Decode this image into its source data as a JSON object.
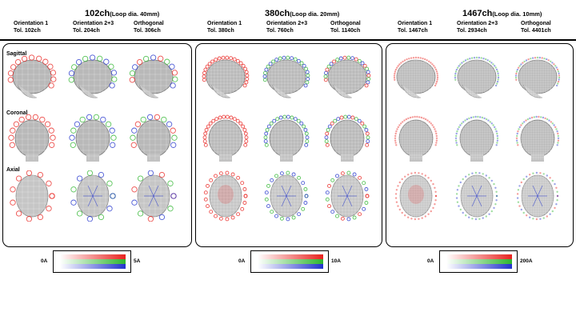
{
  "groups": [
    {
      "title": "102ch",
      "subtitle": "(Loop dia. 40mm)",
      "columns": [
        {
          "name": "Orientation 1",
          "tol": "Tol. 102ch"
        },
        {
          "name": "Orientation 2+3",
          "tol": "Tol.  204ch"
        },
        {
          "name": "Orthogonal",
          "tol": "Tol. 306ch"
        }
      ],
      "legend": {
        "min": "0A",
        "max": "5A"
      }
    },
    {
      "title": "380ch",
      "subtitle": "(Loop dia. 20mm)",
      "columns": [
        {
          "name": "Orientation 1",
          "tol": "Tol. 380ch"
        },
        {
          "name": "Orientation 2+3",
          "tol": "Tol.  760ch"
        },
        {
          "name": "Orthogonal",
          "tol": "Tol. 1140ch"
        }
      ],
      "legend": {
        "min": "0A",
        "max": "10A"
      }
    },
    {
      "title": "1467ch",
      "subtitle": "(Loop dia. 10mm)",
      "columns": [
        {
          "name": "Orientation 1",
          "tol": "Tol. 1467ch"
        },
        {
          "name": "Orientation 2+3",
          "tol": "Tol.  2934ch"
        },
        {
          "name": "Orthogonal",
          "tol": "Tol. 4401ch"
        }
      ],
      "legend": {
        "min": "0A",
        "max": "200A"
      }
    }
  ],
  "rows": [
    "Sagittal",
    "Coronal",
    "Axial"
  ],
  "colors": {
    "orientation1": "#e8231f",
    "orientation2": "#2fb52f",
    "orientation3": "#2233cc"
  }
}
